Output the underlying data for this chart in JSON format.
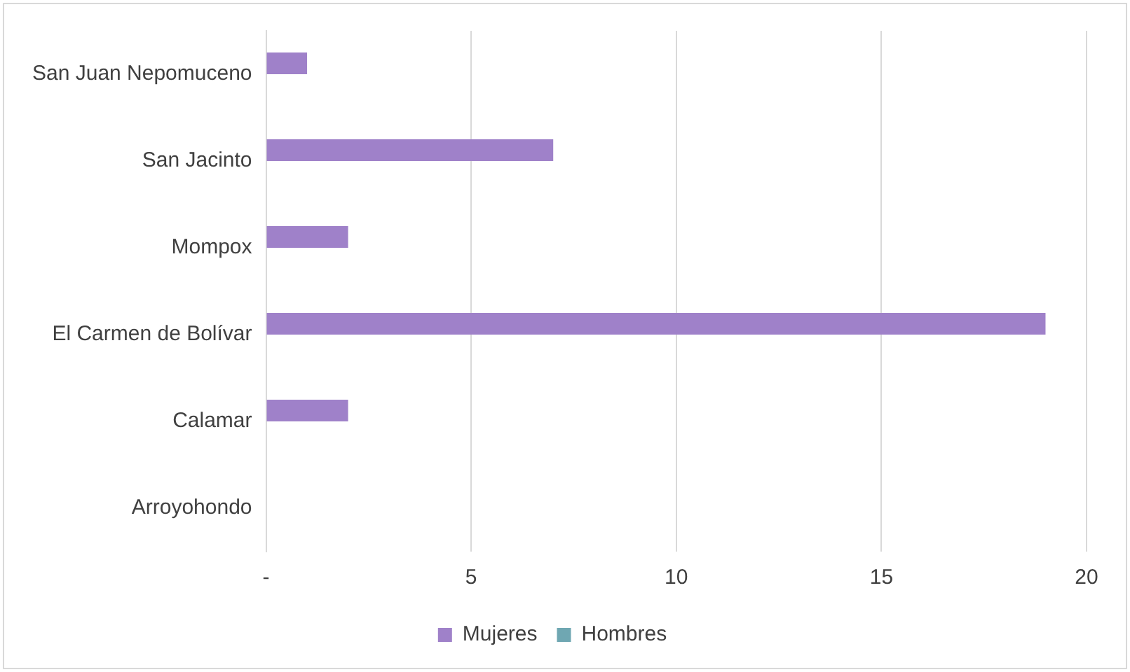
{
  "chart_data": {
    "type": "bar",
    "orientation": "horizontal",
    "categories": [
      "San Juan Nepomuceno",
      "San Jacinto",
      "Mompox",
      "El Carmen de Bolívar",
      "Calamar",
      "Arroyohondo"
    ],
    "series": [
      {
        "name": "Mujeres",
        "color": "#9f81c9",
        "values": [
          1,
          7,
          2,
          19,
          2,
          0
        ]
      },
      {
        "name": "Hombres",
        "color": "#6fa7b2",
        "values": [
          0,
          0,
          0,
          0,
          0,
          0
        ]
      }
    ],
    "xlim": [
      0,
      20
    ],
    "xticks": [
      {
        "value": 0,
        "label": "-"
      },
      5,
      10,
      15,
      20
    ],
    "grid": "x",
    "legend": "bottom"
  }
}
